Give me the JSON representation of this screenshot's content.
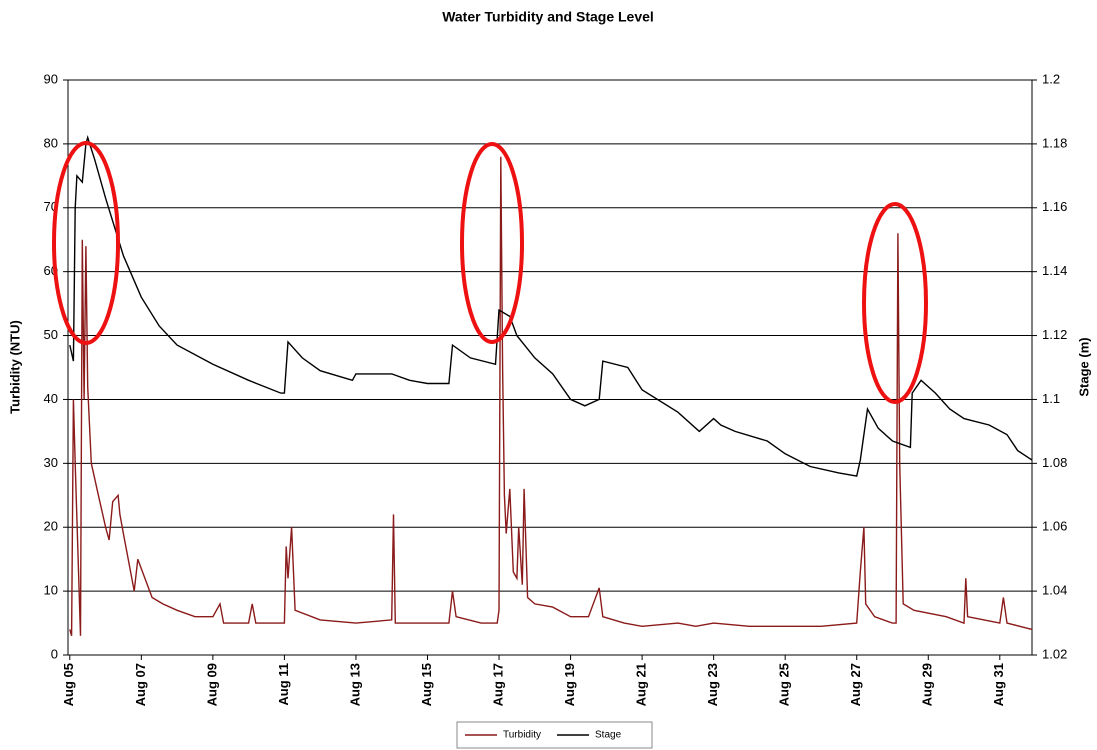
{
  "chart_data": {
    "type": "line",
    "title": "Water Turbidity and Stage Level",
    "y_label": "Turbidity (NTU)",
    "y2_label": "Stage (m)",
    "xlim": [
      4.95,
      31.9
    ],
    "xticks": [
      {
        "value": 5,
        "label": "Aug 05"
      },
      {
        "value": 7,
        "label": "Aug 07"
      },
      {
        "value": 9,
        "label": "Aug 09"
      },
      {
        "value": 11,
        "label": "Aug 11"
      },
      {
        "value": 13,
        "label": "Aug 13"
      },
      {
        "value": 15,
        "label": "Aug 15"
      },
      {
        "value": 17,
        "label": "Aug 17"
      },
      {
        "value": 19,
        "label": "Aug 19"
      },
      {
        "value": 21,
        "label": "Aug 21"
      },
      {
        "value": 23,
        "label": "Aug 23"
      },
      {
        "value": 25,
        "label": "Aug 25"
      },
      {
        "value": 27,
        "label": "Aug 27"
      },
      {
        "value": 29,
        "label": "Aug 29"
      },
      {
        "value": 31,
        "label": "Aug 31"
      }
    ],
    "ylim": [
      0,
      90
    ],
    "yticks": [
      0,
      10,
      20,
      30,
      40,
      50,
      60,
      70,
      80,
      90
    ],
    "y2lim": [
      1.02,
      1.2
    ],
    "y2ticks": [
      1.02,
      1.04,
      1.06,
      1.08,
      1.1,
      1.12,
      1.14,
      1.16,
      1.18,
      1.2
    ],
    "grid": true,
    "series": [
      {
        "name": "Turbidity",
        "color": "#8b1a1a",
        "x": [
          5.0,
          5.05,
          5.1,
          5.15,
          5.3,
          5.35,
          5.4,
          5.45,
          5.5,
          5.6,
          5.8,
          6.0,
          6.1,
          6.2,
          6.35,
          6.4,
          6.5,
          6.7,
          6.8,
          6.9,
          7.1,
          7.3,
          7.6,
          8.0,
          8.5,
          9.0,
          9.2,
          9.3,
          10.0,
          10.1,
          10.2,
          11.0,
          11.05,
          11.1,
          11.2,
          11.3,
          12.0,
          13.0,
          14.0,
          14.05,
          14.1,
          15.0,
          15.6,
          15.7,
          15.8,
          16.5,
          16.95,
          17.0,
          17.05,
          17.1,
          17.15,
          17.2,
          17.3,
          17.4,
          17.5,
          17.55,
          17.65,
          17.7,
          17.8,
          18.0,
          18.5,
          19.0,
          19.5,
          19.8,
          19.9,
          20.5,
          21.0,
          22.0,
          22.5,
          23.0,
          24.0,
          25.0,
          26.0,
          27.0,
          27.1,
          27.2,
          27.25,
          27.5,
          28.0,
          28.1,
          28.15,
          28.2,
          28.3,
          28.6,
          29.5,
          30.0,
          30.05,
          30.1,
          31.0,
          31.1,
          31.2,
          31.9
        ],
        "values": [
          4,
          3,
          40,
          30,
          3,
          65,
          40,
          64,
          42,
          30,
          25,
          20,
          18,
          24,
          25,
          22,
          19,
          13,
          10,
          15,
          12,
          9,
          8,
          7,
          6,
          6,
          8,
          5,
          5,
          8,
          5,
          5,
          17,
          12,
          20,
          7,
          5.5,
          5,
          5.5,
          22,
          5,
          5,
          5,
          10,
          6,
          5,
          5,
          7,
          78,
          45,
          25,
          19,
          26,
          13,
          12,
          20,
          11,
          26,
          9,
          8,
          7.5,
          6,
          6,
          10.5,
          6,
          5,
          4.5,
          5,
          4.5,
          5,
          4.5,
          4.5,
          4.5,
          5,
          13,
          20,
          8,
          6,
          5,
          5,
          66,
          30,
          8,
          7,
          6,
          5,
          12,
          6,
          5,
          9,
          5,
          4
        ]
      },
      {
        "name": "Stage",
        "color": "#000000",
        "axis": "y2",
        "x": [
          5.0,
          5.1,
          5.15,
          5.2,
          5.35,
          5.45,
          5.5,
          5.7,
          6.0,
          6.5,
          7.0,
          7.5,
          8.0,
          9.0,
          10.0,
          10.9,
          11.0,
          11.1,
          11.5,
          12.0,
          12.9,
          13.0,
          14.0,
          14.5,
          15.0,
          15.6,
          15.7,
          16.2,
          16.9,
          17.0,
          17.3,
          17.5,
          18.0,
          18.5,
          19.0,
          19.4,
          19.8,
          19.9,
          20.6,
          21.0,
          22.0,
          22.6,
          23.0,
          23.2,
          23.6,
          24.5,
          25.0,
          25.7,
          26.5,
          27.0,
          27.1,
          27.3,
          27.6,
          28.0,
          28.5,
          28.55,
          28.8,
          29.2,
          29.6,
          30.0,
          30.7,
          31.2,
          31.5,
          31.9
        ],
        "values": [
          1.117,
          1.112,
          1.16,
          1.17,
          1.168,
          1.18,
          1.182,
          1.175,
          1.163,
          1.145,
          1.132,
          1.123,
          1.117,
          1.111,
          1.106,
          1.102,
          1.102,
          1.118,
          1.113,
          1.109,
          1.106,
          1.108,
          1.108,
          1.106,
          1.105,
          1.105,
          1.117,
          1.113,
          1.111,
          1.128,
          1.126,
          1.12,
          1.113,
          1.108,
          1.1,
          1.098,
          1.1,
          1.112,
          1.11,
          1.103,
          1.096,
          1.09,
          1.094,
          1.092,
          1.09,
          1.087,
          1.083,
          1.079,
          1.077,
          1.076,
          1.081,
          1.097,
          1.091,
          1.087,
          1.085,
          1.102,
          1.106,
          1.102,
          1.097,
          1.094,
          1.092,
          1.089,
          1.084,
          1.081
        ]
      }
    ]
  }
}
